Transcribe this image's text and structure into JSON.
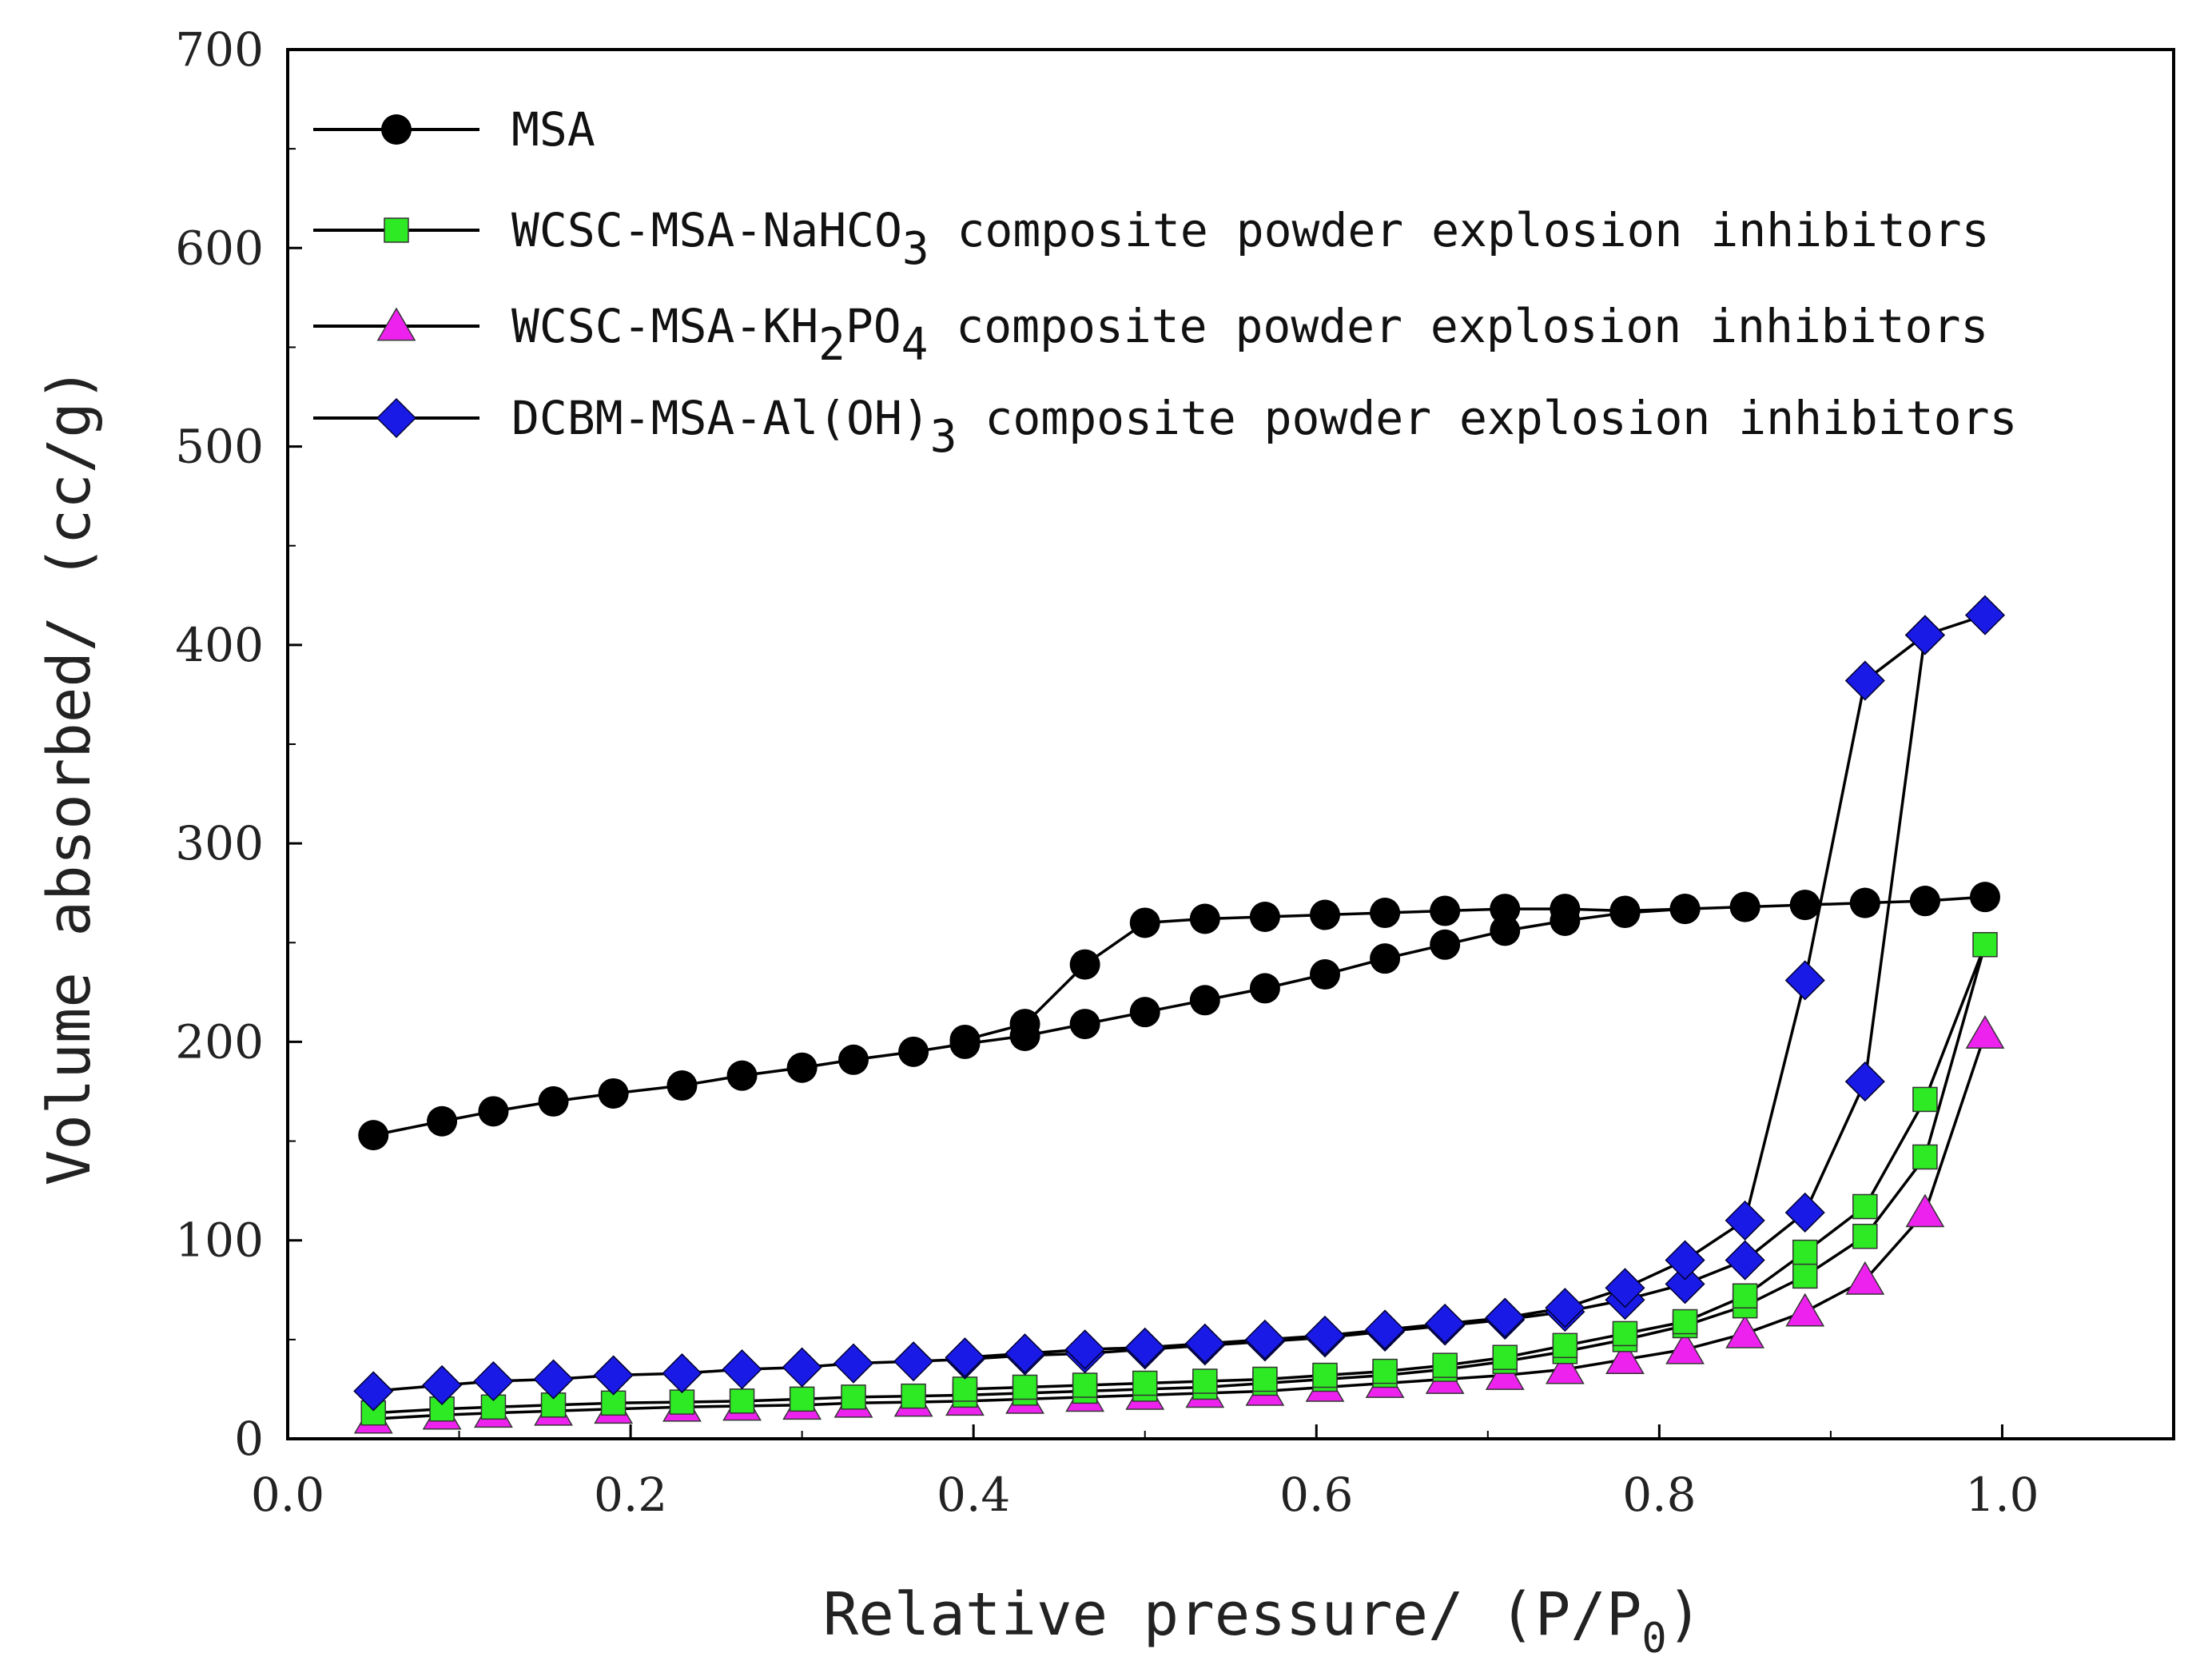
{
  "chart_data": {
    "type": "line",
    "title": "",
    "xlabel": "Relative pressure/ (P/P",
    "xlabel_sub": "0",
    "xlabel_end": ")",
    "ylabel": "Volume absorbed/ (cc/g)",
    "xlim": [
      0,
      1.1
    ],
    "ylim": [
      0,
      700
    ],
    "xticks": [
      "0.0",
      "0.2",
      "0.4",
      "0.6",
      "0.8",
      "1.0"
    ],
    "yticks": [
      "0",
      "100",
      "200",
      "300",
      "400",
      "500",
      "600",
      "700"
    ],
    "legend_position": "top-left",
    "series": [
      {
        "name": "MSA",
        "name_parts": [
          {
            "t": "MSA"
          }
        ],
        "marker": "circle",
        "color": "#000000",
        "x": [
          0.05,
          0.09,
          0.12,
          0.155,
          0.19,
          0.23,
          0.265,
          0.3,
          0.33,
          0.365,
          0.395,
          0.43,
          0.465,
          0.5,
          0.535,
          0.57,
          0.605,
          0.64,
          0.675,
          0.71,
          0.745,
          0.78,
          0.815,
          0.85,
          0.885,
          0.92,
          0.955,
          0.99,
          0.955,
          0.92,
          0.885,
          0.85,
          0.815,
          0.78,
          0.745,
          0.71,
          0.675,
          0.64,
          0.605,
          0.57,
          0.535,
          0.5,
          0.465,
          0.43,
          0.395
        ],
        "y": [
          153,
          160,
          165,
          170,
          174,
          178,
          183,
          187,
          191,
          195,
          199,
          203,
          209,
          215,
          221,
          227,
          234,
          242,
          249,
          256,
          261,
          265,
          267,
          268,
          269,
          270,
          271,
          273,
          271,
          270,
          269,
          268,
          267,
          266,
          267,
          267,
          266,
          265,
          264,
          263,
          262,
          260,
          239,
          209,
          201
        ]
      },
      {
        "name": "WCSC-MSA-NaHCO3 composite powder explosion inhibitors",
        "name_parts": [
          {
            "t": "WCSC-MSA-NaHCO"
          },
          {
            "t": "3",
            "sub": true
          },
          {
            "t": " composite powder explosion inhibitors"
          }
        ],
        "marker": "square",
        "color": "#2eea24",
        "x": [
          0.05,
          0.09,
          0.12,
          0.155,
          0.19,
          0.23,
          0.265,
          0.3,
          0.33,
          0.365,
          0.395,
          0.43,
          0.465,
          0.5,
          0.535,
          0.57,
          0.605,
          0.64,
          0.675,
          0.71,
          0.745,
          0.78,
          0.815,
          0.85,
          0.885,
          0.92,
          0.955,
          0.99,
          0.955,
          0.92,
          0.885,
          0.85,
          0.815,
          0.78,
          0.745,
          0.71,
          0.675,
          0.64,
          0.605,
          0.57,
          0.535,
          0.5,
          0.465,
          0.43,
          0.395
        ],
        "y": [
          13,
          15,
          16,
          17,
          18,
          18.5,
          19,
          20,
          21,
          21.5,
          22,
          23,
          24,
          25,
          26,
          28,
          30,
          32,
          35,
          39,
          44,
          50,
          57,
          67,
          82,
          102,
          142,
          249,
          171,
          117,
          94,
          72,
          59,
          53,
          47,
          41,
          37,
          34,
          32,
          30,
          29,
          28,
          27,
          26,
          25
        ]
      },
      {
        "name": "WCSC-MSA-KH2PO4 composite powder explosion inhibitors",
        "name_parts": [
          {
            "t": "WCSC-MSA-KH"
          },
          {
            "t": "2",
            "sub": true
          },
          {
            "t": "PO"
          },
          {
            "t": "4",
            "sub": true
          },
          {
            "t": " composite powder explosion inhibitors"
          }
        ],
        "marker": "triangle",
        "color": "#ee22ee",
        "x": [
          0.05,
          0.09,
          0.12,
          0.155,
          0.19,
          0.23,
          0.265,
          0.3,
          0.33,
          0.365,
          0.395,
          0.43,
          0.465,
          0.5,
          0.535,
          0.57,
          0.605,
          0.64,
          0.675,
          0.71,
          0.745,
          0.78,
          0.815,
          0.85,
          0.885,
          0.92,
          0.955,
          0.99
        ],
        "y": [
          10,
          12,
          13,
          14,
          15,
          16,
          16.5,
          17,
          18,
          18.5,
          19,
          20,
          21,
          22,
          23,
          24,
          26,
          28,
          30,
          32,
          35,
          40,
          45,
          53,
          64,
          80,
          114,
          204
        ]
      },
      {
        "name": "DCBM-MSA-Al(OH)3 composite powder explosion inhibitors",
        "name_parts": [
          {
            "t": "DCBM-MSA-Al(OH)"
          },
          {
            "t": "3",
            "sub": true
          },
          {
            "t": " composite powder explosion inhibitors"
          }
        ],
        "marker": "diamond",
        "color": "#1a1ae6",
        "x": [
          0.05,
          0.09,
          0.12,
          0.155,
          0.19,
          0.23,
          0.265,
          0.3,
          0.33,
          0.365,
          0.395,
          0.43,
          0.465,
          0.5,
          0.535,
          0.57,
          0.605,
          0.64,
          0.675,
          0.71,
          0.745,
          0.78,
          0.815,
          0.85,
          0.885,
          0.92,
          0.955,
          0.99,
          0.955,
          0.92,
          0.885,
          0.85,
          0.815,
          0.78,
          0.745,
          0.71,
          0.675,
          0.64,
          0.605,
          0.57,
          0.535,
          0.5,
          0.465,
          0.43,
          0.395
        ],
        "y": [
          24,
          27,
          29,
          30,
          32,
          33,
          35,
          36,
          38,
          39,
          40,
          42,
          43,
          45,
          47,
          49,
          51,
          54,
          57,
          60,
          64,
          70,
          78,
          90,
          114,
          180,
          405,
          415,
          405,
          382,
          231,
          110,
          90,
          76,
          66,
          61,
          58,
          55,
          52,
          50,
          48,
          46,
          45,
          43,
          41
        ]
      }
    ]
  }
}
